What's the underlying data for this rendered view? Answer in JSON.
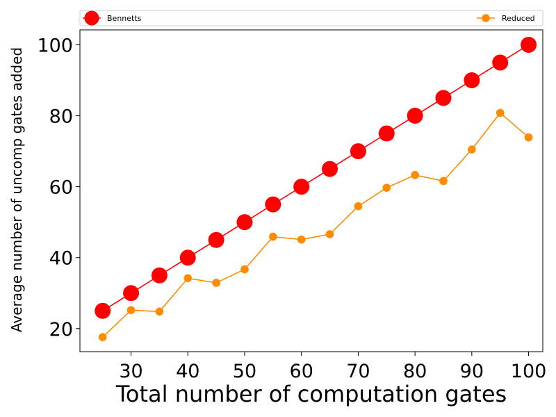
{
  "chart_data": {
    "type": "line",
    "title": "",
    "xlabel": "Total number of computation gates",
    "ylabel": "Average number of uncomp gates added",
    "xlim": [
      21,
      102.5
    ],
    "ylim": [
      13.5,
      104.2
    ],
    "xticks": [
      30,
      40,
      50,
      60,
      70,
      80,
      90,
      100
    ],
    "yticks": [
      20,
      40,
      60,
      80,
      100
    ],
    "grid": false,
    "legend_placement": "top-outside",
    "x": [
      25,
      30,
      35,
      40,
      45,
      50,
      55,
      60,
      65,
      70,
      75,
      80,
      85,
      90,
      95,
      100
    ],
    "series": [
      {
        "name": "Bennetts",
        "color": "#ff0000",
        "marker": "large-circle",
        "values": [
          25,
          30,
          35,
          40,
          45,
          50,
          55,
          60,
          65,
          70,
          75,
          80,
          85,
          90,
          95,
          100
        ]
      },
      {
        "name": "Reduced",
        "color": "#ff8c00",
        "marker": "small-circle",
        "values": [
          17.6,
          25.2,
          24.8,
          34.2,
          32.9,
          36.7,
          45.9,
          45.1,
          46.6,
          54.5,
          59.7,
          63.3,
          61.6,
          70.5,
          80.8,
          73.9
        ]
      }
    ]
  }
}
